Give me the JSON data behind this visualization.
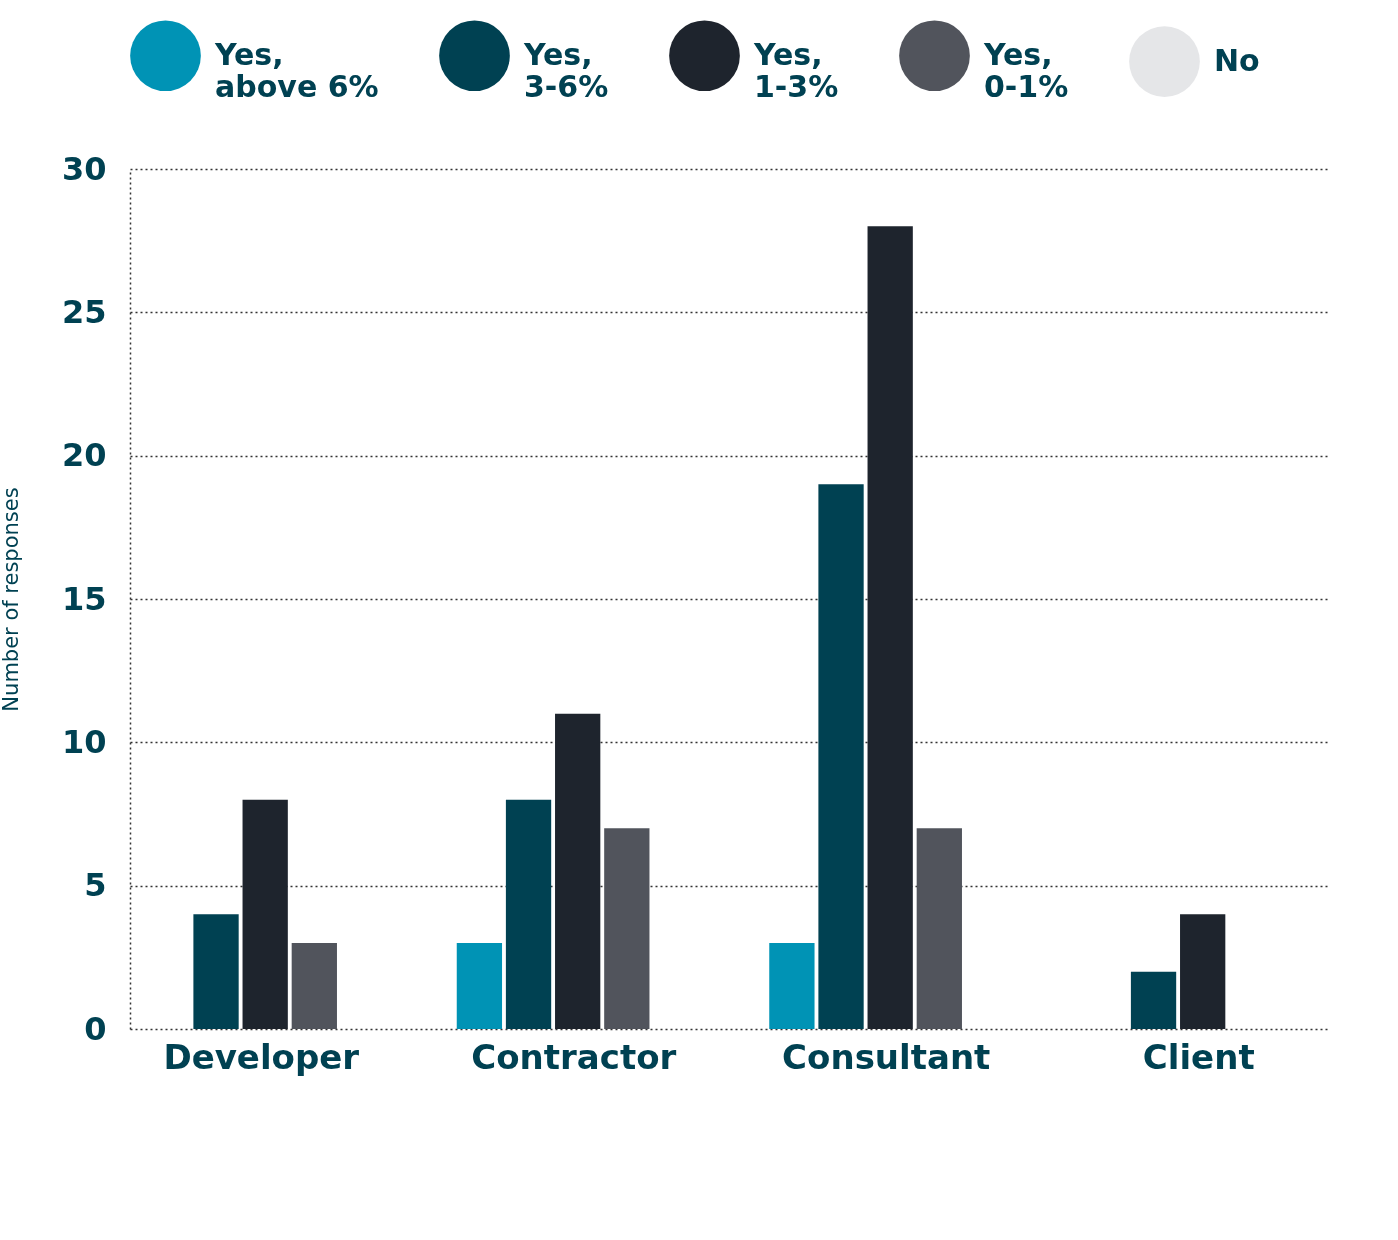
{
  "chart_data": {
    "type": "bar",
    "ylabel": "Number of responses",
    "categories": [
      "Developer",
      "Contractor",
      "Consultant",
      "Client"
    ],
    "series": [
      {
        "name": "Yes, above 6%",
        "color": "#0093b5",
        "values": [
          null,
          3,
          3,
          null
        ]
      },
      {
        "name": "Yes, 3-6%",
        "color": "#004152",
        "values": [
          4,
          8,
          19,
          2
        ]
      },
      {
        "name": "Yes, 1-3%",
        "color": "#1e242d",
        "values": [
          8,
          11,
          28,
          4
        ]
      },
      {
        "name": "Yes, 0-1%",
        "color": "#51545c",
        "values": [
          3,
          7,
          7,
          null
        ]
      },
      {
        "name": "No",
        "color": "#e5e6e8",
        "values": [
          null,
          null,
          null,
          null
        ]
      }
    ],
    "ylim": [
      0,
      30
    ],
    "yticks": [
      0,
      5,
      10,
      15,
      20,
      25,
      30
    ],
    "grid": "y",
    "legend": "top"
  }
}
